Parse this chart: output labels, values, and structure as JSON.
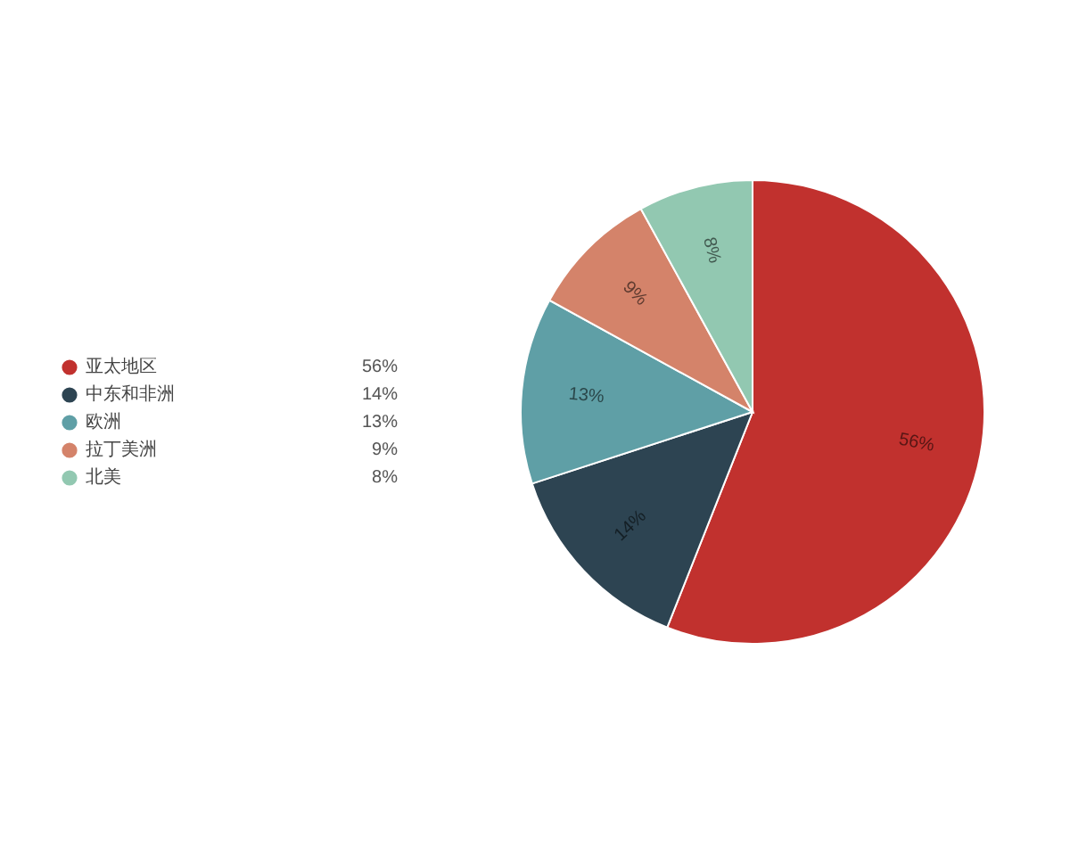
{
  "chart_data": {
    "type": "pie",
    "categories": [
      "亚太地区",
      "中东和非洲",
      "欧洲",
      "拉丁美洲",
      "北美"
    ],
    "values": [
      56,
      14,
      13,
      9,
      8
    ],
    "colors": [
      "#c1312e",
      "#2d4452",
      "#5f9fa6",
      "#d4836a",
      "#92c8b1"
    ],
    "value_labels": [
      "56%",
      "14%",
      "13%",
      "9%",
      "8%"
    ],
    "legend": "left"
  }
}
